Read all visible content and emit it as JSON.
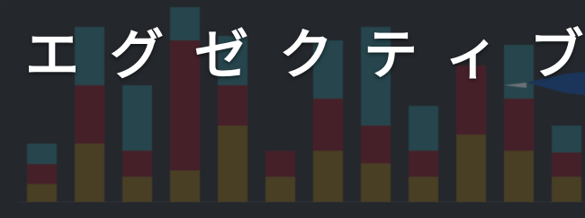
{
  "banner": {
    "title": "エグゼクティブ"
  }
}
